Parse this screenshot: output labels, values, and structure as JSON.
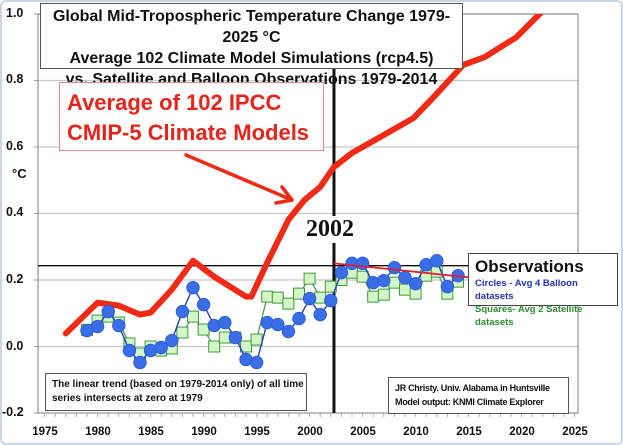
{
  "chart_data": {
    "type": "line",
    "title": "Global Mid-Tropospheric Temperature Change 1979-2025 °C",
    "subtitle_lines": [
      "Average 102 Climate Model Simulations (rcp4.5)",
      "vs. Satellite and Balloon Observations 1979-2014"
    ],
    "title_lines": [
      "Global Mid-Tropospheric Temperature Change 1979-2025 °C",
      "Average 102 Climate Model Simulations (rcp4.5)",
      "vs. Satellite and Balloon Observations 1979-2014"
    ],
    "xlabel": "",
    "ylabel": "°C",
    "xlim": [
      1975,
      2025
    ],
    "ylim": [
      -0.2,
      1.0
    ],
    "x_ticks": [
      "1975",
      "1980",
      "1985",
      "1990",
      "1995",
      "2000",
      "2005",
      "2010",
      "2015",
      "2020",
      "2025"
    ],
    "y_ticks": [
      "1.0",
      "0.8",
      "0.6",
      "0.4",
      "0.2",
      "0.0",
      "-0.2"
    ],
    "y_tick_values": [
      1.0,
      0.8,
      0.6,
      0.4,
      0.2,
      0.0,
      -0.2
    ],
    "grid": true,
    "series": [
      {
        "name": "Average of 102 IPCC CMIP-5 Climate Models",
        "style": "thick-line",
        "color": "#f02a16",
        "x": [
          1977,
          1980,
          1982,
          1984,
          1985,
          1987,
          1989,
          1991,
          1994,
          1994.5,
          1996,
          1998,
          1999.5,
          2001,
          2002.3,
          2004,
          2005,
          2006.5,
          2009.8,
          2011.7,
          2014.5,
          2016.5,
          2019.5,
          2021.7,
          2023
        ],
        "values": [
          0.039,
          0.132,
          0.123,
          0.096,
          0.102,
          0.171,
          0.258,
          0.21,
          0.15,
          0.15,
          0.252,
          0.381,
          0.44,
          0.48,
          0.54,
          0.582,
          0.6,
          0.627,
          0.687,
          0.75,
          0.847,
          0.87,
          0.93,
          1.0,
          1.04
        ]
      },
      {
        "name": "Circles - Avg 4 Balloon datasets",
        "style": "circles",
        "color": "#3a6ee8",
        "x": [
          1979,
          1980,
          1981,
          1982,
          1983,
          1984,
          1985,
          1986,
          1987,
          1988,
          1989,
          1990,
          1991,
          1992,
          1993,
          1994,
          1995,
          1996,
          1997,
          1998,
          1999,
          2000,
          2001,
          2002,
          2003,
          2004,
          2005,
          2006,
          2007,
          2008,
          2009,
          2010,
          2011,
          2012,
          2013,
          2014
        ],
        "values": [
          0.048,
          0.06,
          0.105,
          0.063,
          -0.012,
          -0.048,
          -0.012,
          -0.003,
          0.018,
          0.105,
          0.177,
          0.126,
          0.063,
          0.072,
          0.027,
          -0.039,
          -0.048,
          0.072,
          0.066,
          0.045,
          0.084,
          0.144,
          0.096,
          0.138,
          0.222,
          0.25,
          0.25,
          0.192,
          0.198,
          0.237,
          0.207,
          0.189,
          0.246,
          0.258,
          0.18,
          0.213
        ]
      },
      {
        "name": "Squares- Avg 2 Satellite datasets",
        "style": "squares",
        "color": "#3c9a3c",
        "x": [
          1979,
          1980,
          1981,
          1982,
          1983,
          1984,
          1985,
          1986,
          1987,
          1988,
          1989,
          1990,
          1991,
          1992,
          1993,
          1994,
          1995,
          1996,
          1997,
          1998,
          1999,
          2000,
          2001,
          2002,
          2003,
          2004,
          2005,
          2006,
          2007,
          2008,
          2009,
          2010,
          2011,
          2012,
          2013,
          2014
        ],
        "values": [
          0.05,
          0.078,
          0.09,
          0.072,
          0.009,
          -0.021,
          0.0,
          -0.012,
          -0.006,
          0.042,
          0.09,
          0.051,
          0.0,
          0.027,
          0.027,
          0.0,
          0.021,
          0.15,
          0.147,
          0.129,
          0.159,
          0.204,
          0.147,
          0.18,
          0.2,
          0.222,
          0.21,
          0.15,
          0.156,
          0.192,
          0.171,
          0.159,
          0.213,
          0.225,
          0.159,
          0.195
        ]
      }
    ],
    "reference_lines": {
      "vertical_year": 2002.3,
      "vertical_label": "2002",
      "horizontal_value": 0.243,
      "horizontal_x_range": [
        1975,
        2015.3
      ],
      "obs_trend": {
        "x": [
          2002.3,
          2015.3
        ],
        "values": [
          0.25,
          0.207
        ],
        "color": "#e0202a"
      }
    },
    "annotations": {
      "model_label_lines": [
        "Average of 102 IPCC",
        "CMIP-5 Climate Models"
      ],
      "observations_title": "Observations",
      "observations_circles": "Circles - Avg 4 Balloon datasets",
      "observations_squares": "Squares- Avg 2 Satellite datasets",
      "trend_note_lines": [
        "The linear trend (based on 1979-2014 only) of all time",
        "series intersects at zero at 1979"
      ],
      "credit_lines": [
        "JR Christy. Univ. Alabama in Huntsville",
        "Model output: KNMI Climate Explorer"
      ],
      "arrow_color": "#f02a16"
    },
    "legend": "right"
  }
}
